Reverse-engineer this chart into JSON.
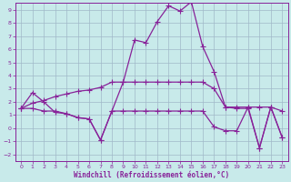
{
  "background_color": "#c8eaea",
  "grid_color": "#a0b8c8",
  "line_color": "#882299",
  "xlim": [
    -0.5,
    23.5
  ],
  "ylim": [
    -2.5,
    9.5
  ],
  "xticks": [
    0,
    1,
    2,
    3,
    4,
    5,
    6,
    7,
    8,
    9,
    10,
    11,
    12,
    13,
    14,
    15,
    16,
    17,
    18,
    19,
    20,
    21,
    22,
    23
  ],
  "yticks": [
    -2,
    -1,
    0,
    1,
    2,
    3,
    4,
    5,
    6,
    7,
    8,
    9
  ],
  "xlabel": "Windchill (Refroidissement éolien,°C)",
  "series1_x": [
    0,
    1,
    2,
    3,
    4,
    5,
    6,
    7,
    8,
    9,
    10,
    11,
    12,
    13,
    14,
    15,
    16,
    17,
    18,
    19,
    20,
    21,
    22,
    23
  ],
  "series1_y": [
    1.5,
    2.7,
    2.0,
    1.2,
    1.1,
    0.8,
    0.7,
    -0.9,
    1.3,
    3.5,
    6.7,
    6.5,
    8.1,
    9.3,
    8.9,
    9.6,
    6.2,
    4.3,
    1.6,
    1.5,
    1.5,
    -1.5,
    1.6,
    -0.7
  ],
  "series2_x": [
    0,
    1,
    2,
    3,
    4,
    5,
    6,
    7,
    8,
    9,
    10,
    11,
    12,
    13,
    14,
    15,
    16,
    17,
    18,
    19,
    20,
    21,
    22,
    23
  ],
  "series2_y": [
    1.5,
    1.9,
    2.1,
    2.4,
    2.6,
    2.8,
    2.9,
    3.1,
    3.5,
    3.5,
    3.5,
    3.5,
    3.5,
    3.5,
    3.5,
    3.5,
    3.5,
    3.0,
    1.6,
    1.6,
    1.6,
    1.6,
    1.6,
    1.3
  ],
  "series3_x": [
    0,
    1,
    2,
    3,
    4,
    5,
    6,
    7,
    8,
    9,
    10,
    11,
    12,
    13,
    14,
    15,
    16,
    17,
    18,
    19,
    20,
    21,
    22,
    23
  ],
  "series3_y": [
    1.5,
    1.5,
    1.3,
    1.3,
    1.1,
    0.8,
    0.7,
    -0.9,
    1.3,
    1.3,
    1.3,
    1.3,
    1.3,
    1.3,
    1.3,
    1.3,
    1.3,
    0.1,
    -0.2,
    -0.2,
    1.6,
    -1.5,
    1.6,
    -0.7
  ],
  "marker_size": 2.5,
  "line_width": 0.9
}
